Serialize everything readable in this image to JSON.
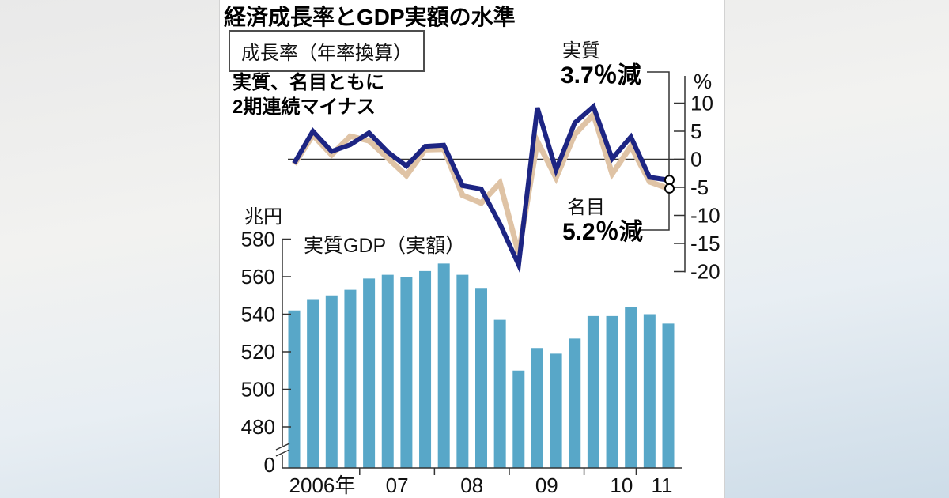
{
  "title": "経済成長率とGDP実額の水準",
  "growth_box_label": "成長率（年率換算）",
  "note_line1": "実質、名目ともに",
  "note_line2": "2期連続マイナス",
  "annotations": {
    "real_label": "実質",
    "real_value": "3.7％減",
    "nominal_label": "名目",
    "nominal_value": "5.2％減"
  },
  "colors": {
    "real_line": "#1d2583",
    "nominal_line": "#dfc3a5",
    "bar_fill": "#58a7c8",
    "axis": "#333333",
    "text": "#111111"
  },
  "chart_data": [
    {
      "type": "line",
      "title": "成長率（年率換算）",
      "unit": "%",
      "x": [
        "2006Q1",
        "2006Q2",
        "2006Q3",
        "2006Q4",
        "2007Q1",
        "2007Q2",
        "2007Q3",
        "2007Q4",
        "2008Q1",
        "2008Q2",
        "2008Q3",
        "2008Q4",
        "2009Q1",
        "2009Q2",
        "2009Q3",
        "2009Q4",
        "2010Q1",
        "2010Q2",
        "2010Q3",
        "2010Q4",
        "2011Q1"
      ],
      "series": [
        {
          "name": "実質",
          "color": "#1d2583",
          "values": [
            -0.7,
            5.0,
            1.4,
            2.6,
            4.7,
            1.3,
            -1.2,
            2.3,
            2.5,
            -4.7,
            -5.3,
            -11.5,
            -18.8,
            9.2,
            -1.9,
            6.5,
            9.4,
            0.1,
            4.0,
            -3.2,
            -3.7
          ]
        },
        {
          "name": "名目",
          "color": "#dfc3a5",
          "values": [
            -0.9,
            4.3,
            0.8,
            4.1,
            3.3,
            0.2,
            -2.9,
            1.7,
            1.8,
            -6.4,
            -7.8,
            -4.2,
            -16.8,
            3.2,
            -3.3,
            4.4,
            8.0,
            -2.6,
            2.3,
            -4.0,
            -5.2
          ]
        }
      ],
      "yticks": [
        10,
        5,
        0,
        -5,
        -10,
        -15,
        -20
      ],
      "ylim": [
        -20,
        10
      ],
      "grid": false,
      "legend_position": "annotated-endpoints",
      "endpoint_markers": true
    },
    {
      "type": "bar",
      "title": "実質GDP（実額）",
      "unit": "兆円",
      "categories": [
        "2006Q1",
        "2006Q2",
        "2006Q3",
        "2006Q4",
        "2007Q1",
        "2007Q2",
        "2007Q3",
        "2007Q4",
        "2008Q1",
        "2008Q2",
        "2008Q3",
        "2008Q4",
        "2009Q1",
        "2009Q2",
        "2009Q3",
        "2009Q4",
        "2010Q1",
        "2010Q2",
        "2010Q3",
        "2010Q4",
        "2011Q1"
      ],
      "values": [
        542,
        548,
        550,
        553,
        559,
        561,
        560,
        563,
        567,
        561,
        554,
        537,
        510,
        522,
        519,
        527,
        539,
        539,
        544,
        540,
        535
      ],
      "yticks": [
        580,
        560,
        540,
        520,
        500,
        480
      ],
      "zero_label": "0",
      "axis_break": true,
      "ylim": [
        480,
        580
      ],
      "xtick_labels": [
        "2006年",
        "07",
        "08",
        "09",
        "10",
        "11"
      ],
      "xtick_groups": [
        4,
        4,
        4,
        4,
        4,
        1
      ],
      "grid": false
    }
  ]
}
